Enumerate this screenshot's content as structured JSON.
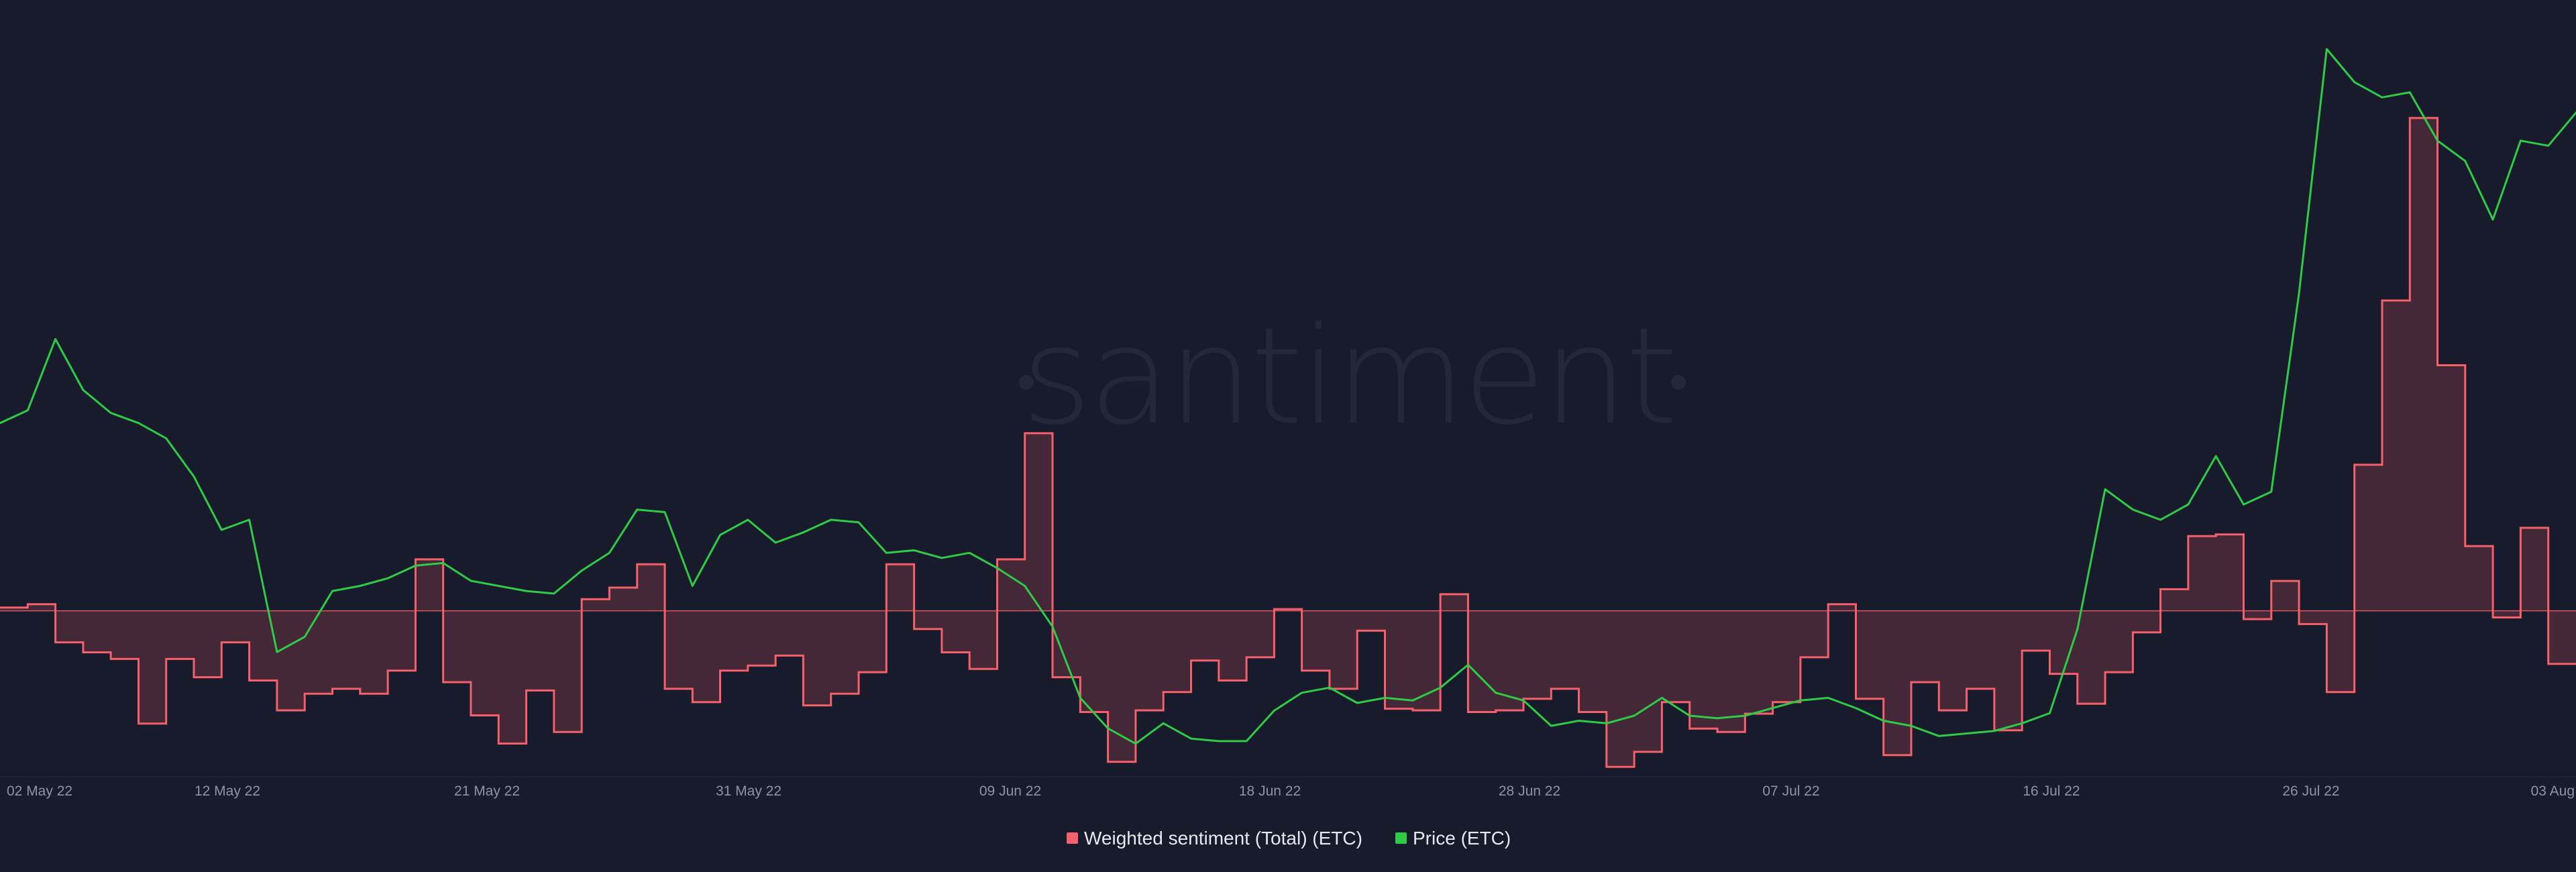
{
  "watermark": "santiment",
  "chart_data": {
    "type": "line",
    "title": "",
    "xlabel": "",
    "ylabel": "",
    "grid": false,
    "legend_placement": "bottom-center",
    "x_range": [
      "2022-05-02",
      "2022-08-03"
    ],
    "x_ticks": [
      "02 May 22",
      "12 May 22",
      "21 May 22",
      "31 May 22",
      "09 Jun 22",
      "18 Jun 22",
      "28 Jun 22",
      "07 Jul 22",
      "16 Jul 22",
      "26 Jul 22",
      "03 Aug"
    ],
    "legend": [
      {
        "label": "Weighted sentiment (Total) (ETC)",
        "color": "#f4616b"
      },
      {
        "label": "Price (ETC)",
        "color": "#2fcb47"
      }
    ],
    "series": [
      {
        "name": "Weighted sentiment (Total) (ETC)",
        "color": "#f4616b",
        "style": "step-area-around-zero",
        "ylim": [
          -1.0,
          3.6
        ],
        "x": [
          "2022-05-02",
          "2022-05-03",
          "2022-05-04",
          "2022-05-05",
          "2022-05-06",
          "2022-05-07",
          "2022-05-08",
          "2022-05-09",
          "2022-05-10",
          "2022-05-11",
          "2022-05-12",
          "2022-05-13",
          "2022-05-14",
          "2022-05-15",
          "2022-05-16",
          "2022-05-17",
          "2022-05-18",
          "2022-05-19",
          "2022-05-20",
          "2022-05-21",
          "2022-05-22",
          "2022-05-23",
          "2022-05-24",
          "2022-05-25",
          "2022-05-26",
          "2022-05-27",
          "2022-05-28",
          "2022-05-29",
          "2022-05-30",
          "2022-05-31",
          "2022-06-01",
          "2022-06-02",
          "2022-06-03",
          "2022-06-04",
          "2022-06-05",
          "2022-06-06",
          "2022-06-07",
          "2022-06-08",
          "2022-06-09",
          "2022-06-10",
          "2022-06-11",
          "2022-06-12",
          "2022-06-13",
          "2022-06-14",
          "2022-06-15",
          "2022-06-16",
          "2022-06-17",
          "2022-06-18",
          "2022-06-19",
          "2022-06-20",
          "2022-06-21",
          "2022-06-22",
          "2022-06-23",
          "2022-06-24",
          "2022-06-25",
          "2022-06-26",
          "2022-06-27",
          "2022-06-28",
          "2022-06-29",
          "2022-06-30",
          "2022-07-01",
          "2022-07-02",
          "2022-07-03",
          "2022-07-04",
          "2022-07-05",
          "2022-07-06",
          "2022-07-07",
          "2022-07-08",
          "2022-07-09",
          "2022-07-10",
          "2022-07-11",
          "2022-07-12",
          "2022-07-13",
          "2022-07-14",
          "2022-07-15",
          "2022-07-16",
          "2022-07-17",
          "2022-07-18",
          "2022-07-19",
          "2022-07-20",
          "2022-07-21",
          "2022-07-22",
          "2022-07-23",
          "2022-07-24",
          "2022-07-25",
          "2022-07-26",
          "2022-07-27",
          "2022-07-28",
          "2022-07-29",
          "2022-07-30",
          "2022-07-31",
          "2022-08-01",
          "2022-08-02"
        ],
        "values": [
          0.02,
          0.04,
          -0.19,
          -0.25,
          -0.29,
          -0.68,
          -0.29,
          -0.4,
          -0.19,
          -0.42,
          -0.6,
          -0.5,
          -0.47,
          -0.5,
          -0.36,
          0.31,
          -0.43,
          -0.63,
          -0.8,
          -0.48,
          -0.73,
          0.07,
          0.14,
          0.28,
          -0.47,
          -0.55,
          -0.36,
          -0.33,
          -0.27,
          -0.57,
          -0.5,
          -0.37,
          0.28,
          -0.11,
          -0.25,
          -0.35,
          0.31,
          1.07,
          -0.4,
          -0.61,
          -0.91,
          -0.6,
          -0.49,
          -0.3,
          -0.42,
          -0.28,
          0.01,
          -0.36,
          -0.47,
          -0.12,
          -0.59,
          -0.6,
          0.1,
          -0.61,
          -0.6,
          -0.53,
          -0.47,
          -0.61,
          -0.94,
          -0.85,
          -0.55,
          -0.71,
          -0.73,
          -0.62,
          -0.55,
          -0.28,
          0.04,
          -0.53,
          -0.87,
          -0.43,
          -0.6,
          -0.47,
          -0.72,
          -0.24,
          -0.38,
          -0.56,
          -0.37,
          -0.13,
          0.13,
          0.45,
          0.46,
          -0.05,
          0.18,
          -0.08,
          -0.49,
          0.88,
          1.87,
          2.97,
          1.48,
          0.39,
          -0.04,
          0.5,
          -0.32
        ]
      },
      {
        "name": "Price (ETC)",
        "color": "#2fcb47",
        "style": "line",
        "ylim": [
          16.5,
          46.5
        ],
        "x": [
          "2022-05-02",
          "2022-05-03",
          "2022-05-04",
          "2022-05-05",
          "2022-05-06",
          "2022-05-07",
          "2022-05-08",
          "2022-05-09",
          "2022-05-10",
          "2022-05-11",
          "2022-05-12",
          "2022-05-13",
          "2022-05-14",
          "2022-05-15",
          "2022-05-16",
          "2022-05-17",
          "2022-05-18",
          "2022-05-19",
          "2022-05-20",
          "2022-05-21",
          "2022-05-22",
          "2022-05-23",
          "2022-05-24",
          "2022-05-25",
          "2022-05-26",
          "2022-05-27",
          "2022-05-28",
          "2022-05-29",
          "2022-05-30",
          "2022-05-31",
          "2022-06-01",
          "2022-06-02",
          "2022-06-03",
          "2022-06-04",
          "2022-06-05",
          "2022-06-06",
          "2022-06-07",
          "2022-06-08",
          "2022-06-09",
          "2022-06-10",
          "2022-06-11",
          "2022-06-12",
          "2022-06-13",
          "2022-06-14",
          "2022-06-15",
          "2022-06-16",
          "2022-06-17",
          "2022-06-18",
          "2022-06-19",
          "2022-06-20",
          "2022-06-21",
          "2022-06-22",
          "2022-06-23",
          "2022-06-24",
          "2022-06-25",
          "2022-06-26",
          "2022-06-27",
          "2022-06-28",
          "2022-06-29",
          "2022-06-30",
          "2022-07-01",
          "2022-07-02",
          "2022-07-03",
          "2022-07-04",
          "2022-07-05",
          "2022-07-06",
          "2022-07-07",
          "2022-07-08",
          "2022-07-09",
          "2022-07-10",
          "2022-07-11",
          "2022-07-12",
          "2022-07-13",
          "2022-07-14",
          "2022-07-15",
          "2022-07-16",
          "2022-07-17",
          "2022-07-18",
          "2022-07-19",
          "2022-07-20",
          "2022-07-21",
          "2022-07-22",
          "2022-07-23",
          "2022-07-24",
          "2022-07-25",
          "2022-07-26",
          "2022-07-27",
          "2022-07-28",
          "2022-07-29",
          "2022-07-30",
          "2022-07-31",
          "2022-08-01",
          "2022-08-02",
          "2022-08-03"
        ],
        "values": [
          30.4,
          30.9,
          33.7,
          31.7,
          30.8,
          30.4,
          29.8,
          28.3,
          26.2,
          26.6,
          21.4,
          22.0,
          23.8,
          24.0,
          24.3,
          24.8,
          24.9,
          24.2,
          24.0,
          23.8,
          23.7,
          24.6,
          25.3,
          27.0,
          26.9,
          24.0,
          26.0,
          26.6,
          25.7,
          26.1,
          26.6,
          26.5,
          25.3,
          25.4,
          25.1,
          25.3,
          24.7,
          24.0,
          22.4,
          19.6,
          18.4,
          17.8,
          18.6,
          18.0,
          17.9,
          17.9,
          19.1,
          19.8,
          20.0,
          19.4,
          19.6,
          19.5,
          20.0,
          20.9,
          19.8,
          19.5,
          18.5,
          18.7,
          18.6,
          18.9,
          19.6,
          18.9,
          18.8,
          18.9,
          19.2,
          19.5,
          19.6,
          19.2,
          18.7,
          18.5,
          18.1,
          18.2,
          18.3,
          18.6,
          19.0,
          22.3,
          27.8,
          27.0,
          26.6,
          27.2,
          29.1,
          27.2,
          27.7,
          35.5,
          45.1,
          43.8,
          43.2,
          43.4,
          41.5,
          40.7,
          38.4,
          41.5,
          41.3,
          42.6
        ]
      }
    ]
  }
}
